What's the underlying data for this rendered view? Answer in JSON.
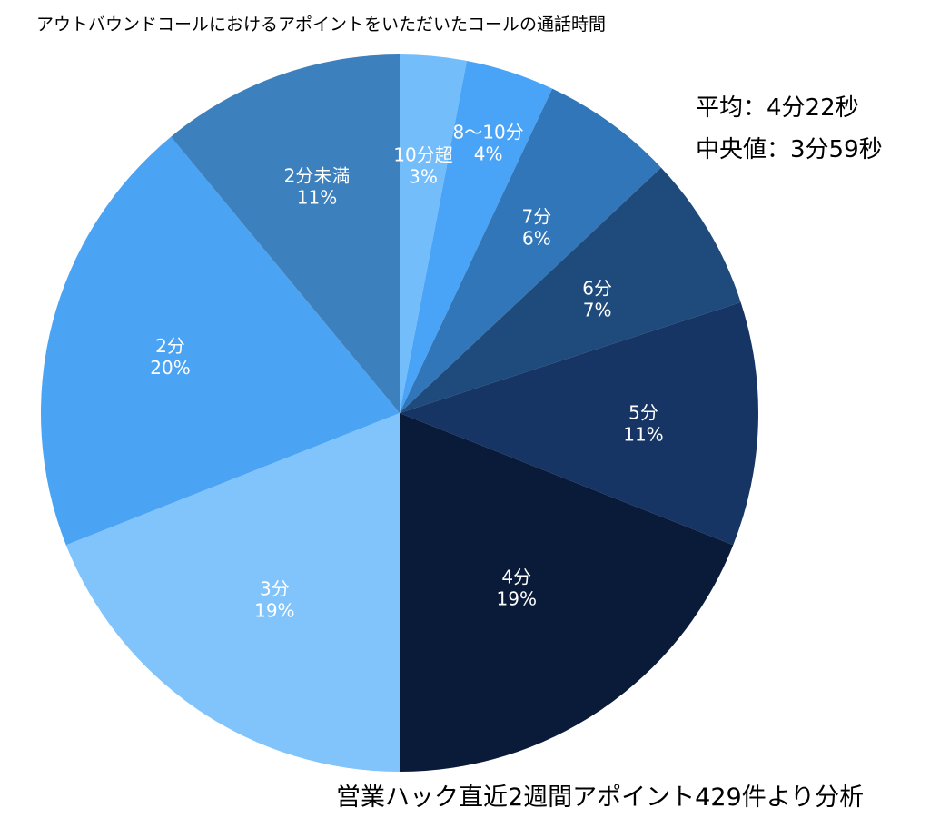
{
  "chart_data": {
    "type": "pie",
    "title": "アウトバウンドコールにおけるアポイントをいただいたコールの通話時間",
    "slices": [
      {
        "category": "10分超",
        "value": 3,
        "label": "3%",
        "color": "#74bdfb"
      },
      {
        "category": "8〜10分",
        "value": 4,
        "label": "4%",
        "color": "#49a3f7"
      },
      {
        "category": "7分",
        "value": 6,
        "label": "6%",
        "color": "#3176b8"
      },
      {
        "category": "6分",
        "value": 7,
        "label": "7%",
        "color": "#1f4a7c"
      },
      {
        "category": "5分",
        "value": 11,
        "label": "11%",
        "color": "#163564"
      },
      {
        "category": "4分",
        "value": 19,
        "label": "19%",
        "color": "#0a1b3a"
      },
      {
        "category": "3分",
        "value": 19,
        "label": "19%",
        "color": "#80c4fb"
      },
      {
        "category": "2分",
        "value": 20,
        "label": "20%",
        "color": "#4aa3f3"
      },
      {
        "category": "2分未満",
        "value": 11,
        "label": "11%",
        "color": "#3c80bd"
      }
    ],
    "start_angle_deg": 0,
    "direction": "clockwise",
    "legend": "none",
    "annotations": {
      "average": "平均：4分22秒",
      "median": "中央値：3分59秒"
    }
  },
  "footer": {
    "source": "営業ハック直近2週間アポイント429件より分析"
  }
}
